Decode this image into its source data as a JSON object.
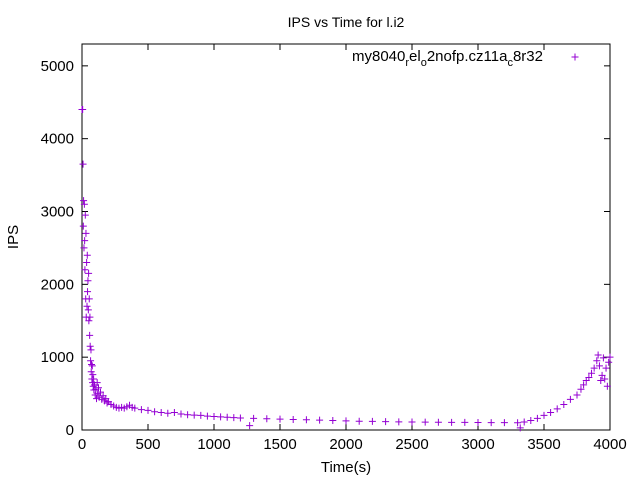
{
  "chart_data": {
    "type": "scatter",
    "title": "IPS vs Time for l.i2",
    "xlabel": "Time(s)",
    "ylabel": "IPS",
    "xlim": [
      0,
      4000
    ],
    "ylim": [
      0,
      5300
    ],
    "xticks": [
      "0",
      "500",
      "1000",
      "1500",
      "2000",
      "2500",
      "3000",
      "3500",
      "4000"
    ],
    "yticks": [
      "0",
      "1000",
      "2000",
      "3000",
      "4000",
      "5000"
    ],
    "grid": false,
    "legend_position": "top-right",
    "marker": "+",
    "series": [
      {
        "name": "my8040_rel_o2nofp.cz11a_c8r32",
        "color": "#9400d3",
        "points": [
          [
            0,
            4400
          ],
          [
            5,
            4400
          ],
          [
            8,
            3650
          ],
          [
            10,
            2800
          ],
          [
            12,
            3150
          ],
          [
            15,
            2500
          ],
          [
            18,
            3100
          ],
          [
            20,
            2600
          ],
          [
            22,
            2200
          ],
          [
            25,
            2950
          ],
          [
            28,
            1800
          ],
          [
            30,
            2700
          ],
          [
            32,
            1550
          ],
          [
            35,
            2300
          ],
          [
            38,
            1700
          ],
          [
            40,
            2400
          ],
          [
            42,
            1900
          ],
          [
            45,
            2050
          ],
          [
            48,
            1650
          ],
          [
            50,
            2150
          ],
          [
            52,
            1500
          ],
          [
            55,
            1800
          ],
          [
            58,
            1300
          ],
          [
            60,
            1550
          ],
          [
            62,
            1150
          ],
          [
            65,
            950
          ],
          [
            68,
            1100
          ],
          [
            70,
            800
          ],
          [
            72,
            900
          ],
          [
            75,
            700
          ],
          [
            78,
            880
          ],
          [
            80,
            650
          ],
          [
            82,
            760
          ],
          [
            85,
            600
          ],
          [
            88,
            700
          ],
          [
            90,
            550
          ],
          [
            95,
            620
          ],
          [
            100,
            480
          ],
          [
            105,
            560
          ],
          [
            110,
            430
          ],
          [
            115,
            650
          ],
          [
            120,
            500
          ],
          [
            125,
            580
          ],
          [
            130,
            450
          ],
          [
            140,
            520
          ],
          [
            150,
            420
          ],
          [
            160,
            470
          ],
          [
            170,
            400
          ],
          [
            180,
            430
          ],
          [
            190,
            370
          ],
          [
            200,
            390
          ],
          [
            220,
            350
          ],
          [
            240,
            330
          ],
          [
            260,
            310
          ],
          [
            280,
            300
          ],
          [
            300,
            310
          ],
          [
            320,
            300
          ],
          [
            340,
            320
          ],
          [
            360,
            340
          ],
          [
            380,
            310
          ],
          [
            400,
            300
          ],
          [
            450,
            280
          ],
          [
            500,
            270
          ],
          [
            550,
            250
          ],
          [
            600,
            240
          ],
          [
            650,
            230
          ],
          [
            700,
            240
          ],
          [
            750,
            220
          ],
          [
            800,
            210
          ],
          [
            850,
            205
          ],
          [
            900,
            200
          ],
          [
            950,
            190
          ],
          [
            1000,
            185
          ],
          [
            1050,
            180
          ],
          [
            1100,
            175
          ],
          [
            1150,
            170
          ],
          [
            1200,
            165
          ],
          [
            1270,
            60
          ],
          [
            1300,
            160
          ],
          [
            1400,
            155
          ],
          [
            1500,
            150
          ],
          [
            1600,
            145
          ],
          [
            1700,
            140
          ],
          [
            1800,
            135
          ],
          [
            1900,
            130
          ],
          [
            2000,
            125
          ],
          [
            2100,
            120
          ],
          [
            2200,
            118
          ],
          [
            2300,
            115
          ],
          [
            2400,
            112
          ],
          [
            2500,
            110
          ],
          [
            2600,
            108
          ],
          [
            2700,
            106
          ],
          [
            2800,
            105
          ],
          [
            2900,
            104
          ],
          [
            3000,
            103
          ],
          [
            3100,
            102
          ],
          [
            3200,
            101
          ],
          [
            3300,
            100
          ],
          [
            3320,
            30
          ],
          [
            3350,
            110
          ],
          [
            3400,
            130
          ],
          [
            3450,
            160
          ],
          [
            3500,
            200
          ],
          [
            3550,
            240
          ],
          [
            3600,
            290
          ],
          [
            3650,
            350
          ],
          [
            3700,
            420
          ],
          [
            3750,
            480
          ],
          [
            3780,
            560
          ],
          [
            3800,
            620
          ],
          [
            3820,
            680
          ],
          [
            3840,
            720
          ],
          [
            3860,
            780
          ],
          [
            3880,
            850
          ],
          [
            3900,
            950
          ],
          [
            3910,
            1030
          ],
          [
            3920,
            880
          ],
          [
            3930,
            680
          ],
          [
            3940,
            750
          ],
          [
            3950,
            990
          ],
          [
            3960,
            700
          ],
          [
            3970,
            850
          ],
          [
            3980,
            600
          ],
          [
            3990,
            930
          ],
          [
            4000,
            1000
          ]
        ]
      }
    ]
  },
  "legend": {
    "base1": "my8040",
    "sub1": "r",
    "base2": "el",
    "sub2": "o",
    "base3": "2nofp.cz11a",
    "sub3": "c",
    "base4": "8r32"
  }
}
